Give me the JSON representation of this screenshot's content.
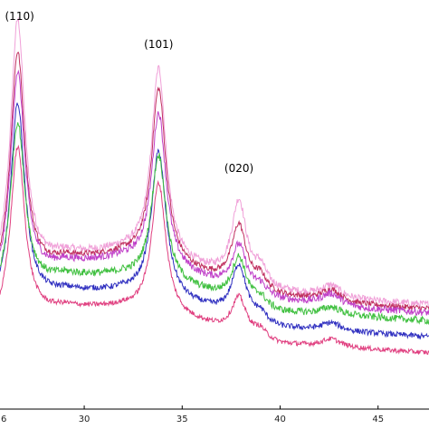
{
  "chart_data": {
    "type": "line",
    "title": "",
    "xlabel": "",
    "ylabel": "",
    "xlim": [
      25.7,
      47.6
    ],
    "ylim": [
      0,
      100
    ],
    "grid": false,
    "legend": "none",
    "x_ticks": [
      30,
      35,
      40,
      45
    ],
    "x_tick_labels": [
      "30",
      "35",
      "40",
      "45"
    ],
    "edge_tick_label": "6",
    "annotations": [
      {
        "text": "(110)",
        "x": 26.7,
        "y": 100
      },
      {
        "text": "(101)",
        "x": 33.8,
        "y": 93
      },
      {
        "text": "(020)",
        "x": 37.9,
        "y": 62
      }
    ],
    "peaks": [
      {
        "label": "(110)",
        "position": 26.6,
        "width": 0.45
      },
      {
        "label": "(101)",
        "position": 33.8,
        "width": 0.45
      },
      {
        "label": "(020)",
        "position": 37.9,
        "width": 0.45
      },
      {
        "label": "",
        "position": 39.0,
        "width": 0.35
      },
      {
        "label": "",
        "position": 42.6,
        "width": 0.6
      }
    ],
    "series": [
      {
        "color": "#f0a0d8",
        "noise": 0.9,
        "baseline": [
          [
            25.7,
            30
          ],
          [
            29.0,
            38
          ],
          [
            32.0,
            39
          ],
          [
            36.0,
            34
          ],
          [
            40.0,
            29
          ],
          [
            44.0,
            27
          ],
          [
            47.6,
            26
          ]
        ],
        "peak_heights": [
          65,
          48,
          20,
          4,
          3
        ]
      },
      {
        "color": "#c03060",
        "noise": 0.7,
        "baseline": [
          [
            25.7,
            29
          ],
          [
            29.0,
            37
          ],
          [
            32.0,
            38
          ],
          [
            36.0,
            33
          ],
          [
            40.0,
            28
          ],
          [
            44.0,
            26
          ],
          [
            47.6,
            25
          ]
        ],
        "peak_heights": [
          58,
          44,
          15,
          3,
          3
        ]
      },
      {
        "color": "#c040c8",
        "noise": 0.9,
        "baseline": [
          [
            25.7,
            28
          ],
          [
            29.0,
            36
          ],
          [
            32.0,
            37
          ],
          [
            36.0,
            32
          ],
          [
            40.0,
            27
          ],
          [
            44.0,
            25
          ],
          [
            47.6,
            24
          ]
        ],
        "peak_heights": [
          54,
          39,
          11,
          2,
          3
        ]
      },
      {
        "color": "#3030c0",
        "noise": 0.7,
        "baseline": [
          [
            25.7,
            24
          ],
          [
            29.0,
            29
          ],
          [
            32.0,
            29
          ],
          [
            36.0,
            25
          ],
          [
            40.0,
            20
          ],
          [
            44.0,
            19
          ],
          [
            47.6,
            18
          ]
        ],
        "peak_heights": [
          51,
          37,
          13,
          2,
          2
        ]
      },
      {
        "color": "#40c040",
        "noise": 0.9,
        "baseline": [
          [
            25.7,
            27
          ],
          [
            29.0,
            33
          ],
          [
            32.0,
            33
          ],
          [
            36.0,
            29
          ],
          [
            40.0,
            24
          ],
          [
            44.0,
            23
          ],
          [
            47.6,
            22
          ]
        ],
        "peak_heights": [
          43,
          32,
          11,
          2,
          2
        ]
      },
      {
        "color": "#e04080",
        "noise": 0.6,
        "baseline": [
          [
            25.7,
            20
          ],
          [
            29.0,
            25
          ],
          [
            32.0,
            25
          ],
          [
            36.0,
            21
          ],
          [
            40.0,
            16
          ],
          [
            44.0,
            15
          ],
          [
            47.6,
            14
          ]
        ],
        "peak_heights": [
          44,
          33,
          9,
          2,
          2
        ]
      }
    ]
  }
}
